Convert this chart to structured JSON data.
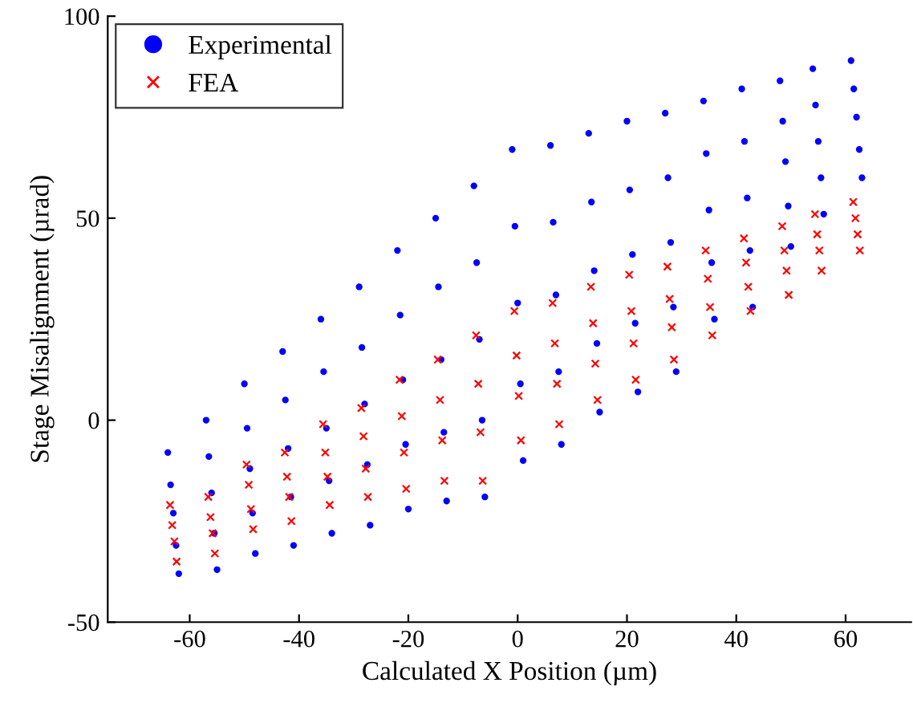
{
  "chart_data": {
    "type": "scatter",
    "xlabel": "Calculated X Position (µm)",
    "ylabel": "Stage Misalignment (µrad)",
    "xlim": [
      -75,
      72
    ],
    "ylim": [
      -50,
      100
    ],
    "xticks": [
      -60,
      -40,
      -20,
      0,
      20,
      40,
      60
    ],
    "yticks": [
      -50,
      0,
      50,
      100
    ],
    "grid": false,
    "legend": "top left",
    "series": [
      {
        "name": "Experimental",
        "color": "#0000ff",
        "marker": "circle",
        "x": [
          -64,
          -63.5,
          -63,
          -62.5,
          -62,
          -57,
          -56.5,
          -56,
          -55.5,
          -55,
          -50,
          -49.5,
          -49,
          -48.5,
          -48,
          -43,
          -42.5,
          -42,
          -41.5,
          -41,
          -36,
          -35.5,
          -35,
          -34.5,
          -34,
          -29,
          -28.5,
          -28,
          -27.5,
          -27,
          -22,
          -21.5,
          -21,
          -20.5,
          -20,
          -15,
          -14.5,
          -14,
          -13.5,
          -13,
          -8,
          -7.5,
          -7,
          -6.5,
          -6,
          -1,
          -0.5,
          0,
          0.5,
          1,
          6,
          6.5,
          7,
          7.5,
          8,
          13,
          13.5,
          14,
          14.5,
          15,
          20,
          20.5,
          21,
          21.5,
          22,
          27,
          27.5,
          28,
          28.5,
          29,
          34,
          34.5,
          35,
          35.5,
          36,
          41,
          41.5,
          42,
          42.5,
          43,
          48,
          48.5,
          49,
          49.5,
          50,
          54,
          54.5,
          55,
          55.5,
          56,
          61,
          61.5,
          62,
          62.5,
          63
        ],
        "values": [
          -8,
          -16,
          -23,
          -31,
          -38,
          0,
          -9,
          -18,
          -28,
          -37,
          9,
          -2,
          -12,
          -23,
          -33,
          17,
          5,
          -7,
          -19,
          -31,
          25,
          12,
          -2,
          -15,
          -28,
          33,
          18,
          4,
          -11,
          -26,
          42,
          26,
          10,
          -6,
          -22,
          50,
          33,
          15,
          -3,
          -20,
          58,
          39,
          20,
          0,
          -19,
          67,
          48,
          29,
          9,
          -10,
          68,
          49,
          31,
          12,
          -6,
          71,
          54,
          37,
          19,
          2,
          74,
          57,
          41,
          24,
          7,
          76,
          60,
          44,
          28,
          12,
          79,
          66,
          52,
          39,
          25,
          82,
          69,
          55,
          42,
          28,
          84,
          74,
          64,
          53,
          43,
          87,
          78,
          69,
          60,
          51,
          89,
          82,
          75,
          67,
          60
        ]
      },
      {
        "name": "FEA",
        "color": "#ff0000",
        "marker": "cross",
        "x": [
          -63.6,
          -63.2,
          -62.8,
          -62.4,
          -56.6,
          -56.2,
          -55.8,
          -55.4,
          -49.6,
          -49.2,
          -48.8,
          -48.4,
          -42.6,
          -42.2,
          -41.8,
          -41.4,
          -35.6,
          -35.2,
          -34.8,
          -34.4,
          -28.6,
          -28.2,
          -27.8,
          -27.4,
          -21.6,
          -21.2,
          -20.8,
          -20.4,
          -14.6,
          -14.2,
          -13.8,
          -13.4,
          -7.6,
          -7.2,
          -6.8,
          -6.4,
          -0.6,
          -0.2,
          0.2,
          0.6,
          6.4,
          6.8,
          7.2,
          7.6,
          13.4,
          13.8,
          14.2,
          14.6,
          20.4,
          20.8,
          21.2,
          21.6,
          27.4,
          27.8,
          28.2,
          28.6,
          34.4,
          34.8,
          35.2,
          35.6,
          41.4,
          41.8,
          42.2,
          42.6,
          48.4,
          48.8,
          49.2,
          49.6,
          54.4,
          54.8,
          55.2,
          55.6,
          61.4,
          61.8,
          62.2,
          62.6
        ],
        "values": [
          -21,
          -26,
          -30,
          -35,
          -19,
          -24,
          -28,
          -33,
          -11,
          -16,
          -22,
          -27,
          -8,
          -14,
          -19,
          -25,
          -1,
          -8,
          -14,
          -21,
          3,
          -4,
          -12,
          -19,
          10,
          1,
          -8,
          -17,
          15,
          5,
          -5,
          -15,
          21,
          9,
          -3,
          -15,
          27,
          16,
          6,
          -5,
          29,
          19,
          9,
          -1,
          33,
          24,
          14,
          5,
          36,
          27,
          19,
          10,
          38,
          30,
          23,
          15,
          42,
          35,
          28,
          21,
          45,
          39,
          33,
          27,
          48,
          42,
          37,
          31,
          51,
          46,
          42,
          37,
          54,
          50,
          46,
          42
        ]
      }
    ]
  }
}
